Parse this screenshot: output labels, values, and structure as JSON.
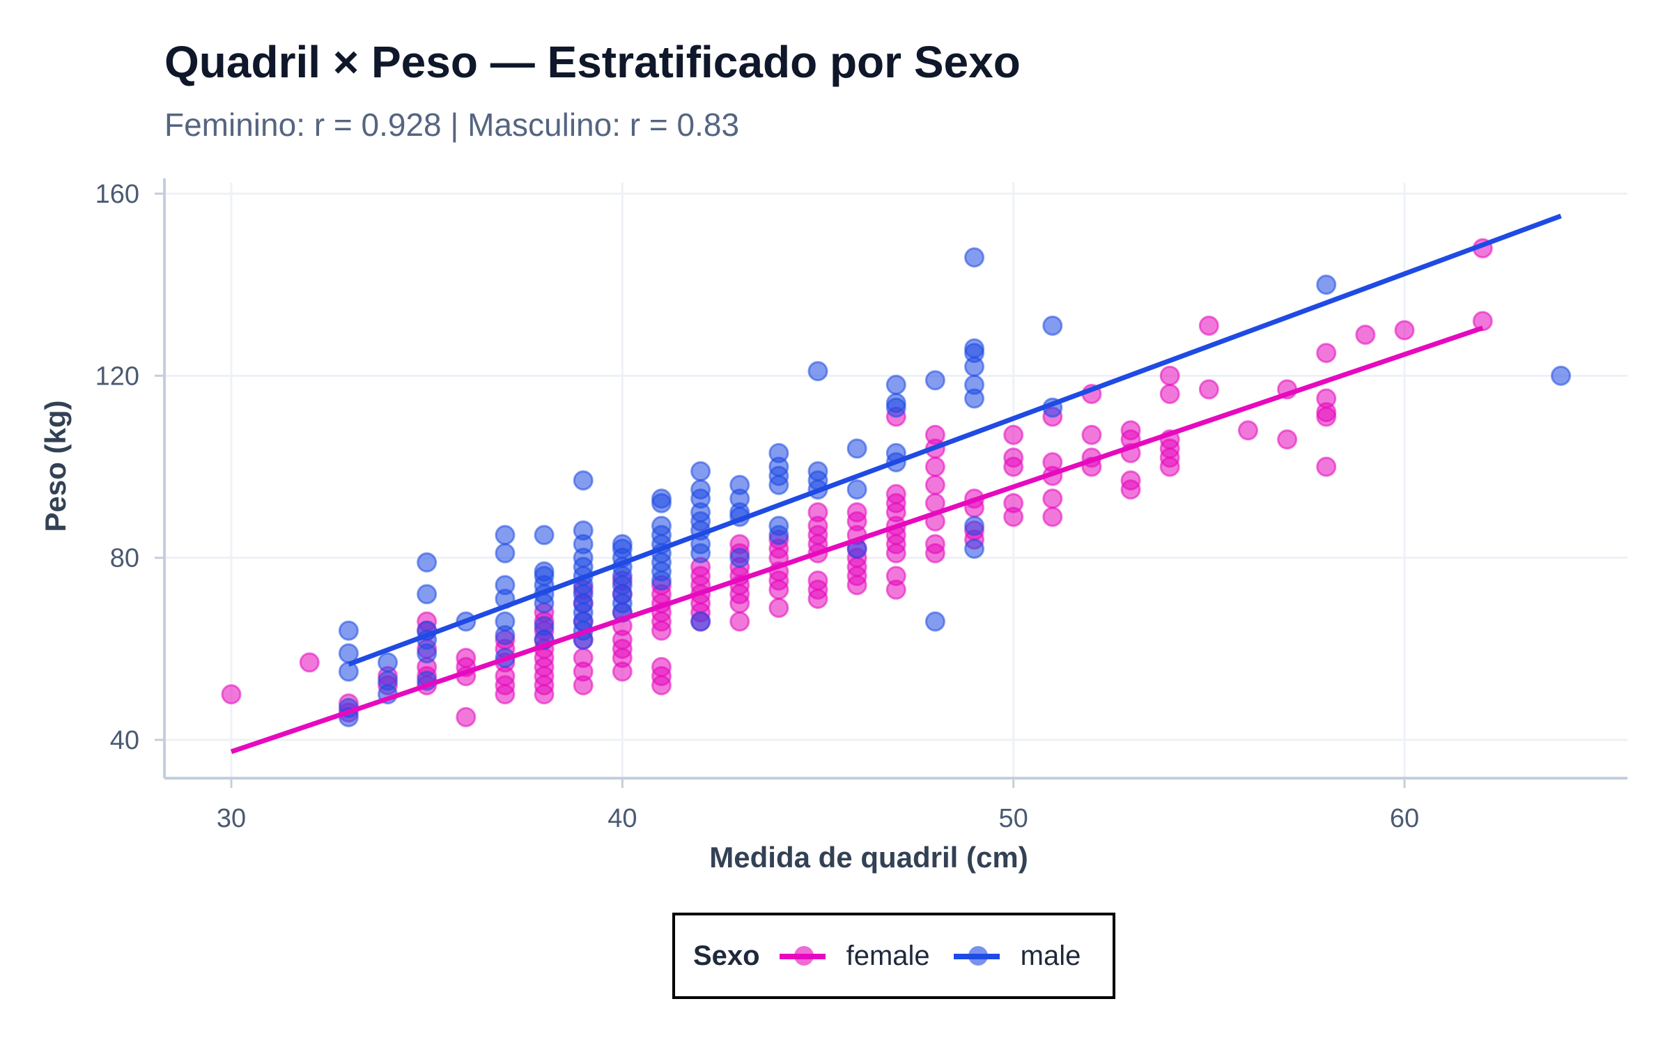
{
  "title": "Quadril × Peso — Estratificado por Sexo",
  "subtitle": "Feminino: r = 0.928 | Masculino: r = 0.83",
  "legend": {
    "title": "Sexo",
    "items": [
      {
        "label": "female",
        "color": "#e60abe"
      },
      {
        "label": "male",
        "color": "#1f4ae3"
      }
    ]
  },
  "chart_data": {
    "type": "scatter",
    "title": "Quadril × Peso — Estratificado por Sexo",
    "subtitle": "Feminino: r = 0.928 | Masculino: r = 0.83",
    "xlabel": "Medida de quadril (cm)",
    "ylabel": "Peso (kg)",
    "xlim": [
      28.3,
      65.7
    ],
    "ylim": [
      32,
      161
    ],
    "xticks": [
      30,
      40,
      50,
      60
    ],
    "yticks": [
      40,
      80,
      120,
      160
    ],
    "grid": true,
    "legend_position": "bottom",
    "series": [
      {
        "name": "female",
        "color": "#e60abe",
        "points": [
          [
            30,
            50
          ],
          [
            32,
            57
          ],
          [
            33,
            46
          ],
          [
            33,
            48
          ],
          [
            34,
            54
          ],
          [
            34,
            52
          ],
          [
            35,
            66
          ],
          [
            35,
            64
          ],
          [
            35,
            60
          ],
          [
            35,
            56
          ],
          [
            35,
            52
          ],
          [
            35,
            54
          ],
          [
            36,
            45
          ],
          [
            36,
            58
          ],
          [
            36,
            54
          ],
          [
            36,
            56
          ],
          [
            37,
            62
          ],
          [
            37,
            60
          ],
          [
            37,
            57
          ],
          [
            37,
            54
          ],
          [
            37,
            52
          ],
          [
            37,
            50
          ],
          [
            38,
            68
          ],
          [
            38,
            66
          ],
          [
            38,
            64
          ],
          [
            38,
            62
          ],
          [
            38,
            60
          ],
          [
            38,
            58
          ],
          [
            38,
            56
          ],
          [
            38,
            54
          ],
          [
            38,
            52
          ],
          [
            38,
            50
          ],
          [
            39,
            73
          ],
          [
            39,
            70
          ],
          [
            39,
            66
          ],
          [
            39,
            62
          ],
          [
            39,
            58
          ],
          [
            39,
            55
          ],
          [
            39,
            52
          ],
          [
            40,
            75
          ],
          [
            40,
            72
          ],
          [
            40,
            68
          ],
          [
            40,
            65
          ],
          [
            40,
            62
          ],
          [
            40,
            60
          ],
          [
            40,
            58
          ],
          [
            40,
            55
          ],
          [
            41,
            74
          ],
          [
            41,
            72
          ],
          [
            41,
            70
          ],
          [
            41,
            68
          ],
          [
            41,
            66
          ],
          [
            41,
            64
          ],
          [
            41,
            56
          ],
          [
            41,
            54
          ],
          [
            41,
            52
          ],
          [
            42,
            78
          ],
          [
            42,
            76
          ],
          [
            42,
            74
          ],
          [
            42,
            72
          ],
          [
            42,
            70
          ],
          [
            42,
            68
          ],
          [
            42,
            66
          ],
          [
            43,
            83
          ],
          [
            43,
            81
          ],
          [
            43,
            78
          ],
          [
            43,
            76
          ],
          [
            43,
            74
          ],
          [
            43,
            72
          ],
          [
            43,
            70
          ],
          [
            43,
            66
          ],
          [
            44,
            84
          ],
          [
            44,
            82
          ],
          [
            44,
            80
          ],
          [
            44,
            77
          ],
          [
            44,
            75
          ],
          [
            44,
            73
          ],
          [
            44,
            69
          ],
          [
            45,
            90
          ],
          [
            45,
            87
          ],
          [
            45,
            85
          ],
          [
            45,
            83
          ],
          [
            45,
            81
          ],
          [
            45,
            75
          ],
          [
            45,
            73
          ],
          [
            45,
            71
          ],
          [
            46,
            90
          ],
          [
            46,
            88
          ],
          [
            46,
            85
          ],
          [
            46,
            82
          ],
          [
            46,
            80
          ],
          [
            46,
            78
          ],
          [
            46,
            76
          ],
          [
            46,
            74
          ],
          [
            47,
            111
          ],
          [
            47,
            94
          ],
          [
            47,
            92
          ],
          [
            47,
            90
          ],
          [
            47,
            87
          ],
          [
            47,
            85
          ],
          [
            47,
            83
          ],
          [
            47,
            81
          ],
          [
            47,
            76
          ],
          [
            47,
            73
          ],
          [
            48,
            107
          ],
          [
            48,
            104
          ],
          [
            48,
            100
          ],
          [
            48,
            96
          ],
          [
            48,
            92
          ],
          [
            48,
            88
          ],
          [
            48,
            83
          ],
          [
            48,
            81
          ],
          [
            49,
            93
          ],
          [
            49,
            91
          ],
          [
            49,
            86
          ],
          [
            49,
            84
          ],
          [
            50,
            107
          ],
          [
            50,
            102
          ],
          [
            50,
            100
          ],
          [
            50,
            92
          ],
          [
            50,
            89
          ],
          [
            51,
            111
          ],
          [
            51,
            101
          ],
          [
            51,
            98
          ],
          [
            51,
            93
          ],
          [
            51,
            89
          ],
          [
            52,
            116
          ],
          [
            52,
            107
          ],
          [
            52,
            102
          ],
          [
            52,
            100
          ],
          [
            53,
            108
          ],
          [
            53,
            106
          ],
          [
            53,
            103
          ],
          [
            53,
            97
          ],
          [
            53,
            95
          ],
          [
            54,
            120
          ],
          [
            54,
            116
          ],
          [
            54,
            106
          ],
          [
            54,
            104
          ],
          [
            54,
            102
          ],
          [
            54,
            100
          ],
          [
            55,
            131
          ],
          [
            55,
            117
          ],
          [
            56,
            108
          ],
          [
            57,
            117
          ],
          [
            57,
            106
          ],
          [
            58,
            125
          ],
          [
            58,
            115
          ],
          [
            58,
            112
          ],
          [
            58,
            111
          ],
          [
            58,
            100
          ],
          [
            59,
            129
          ],
          [
            60,
            130
          ],
          [
            62,
            148
          ],
          [
            62,
            132
          ]
        ],
        "fit": {
          "x": [
            30,
            62
          ],
          "y": [
            37.4,
            130.5
          ]
        },
        "r": 0.928
      },
      {
        "name": "male",
        "color": "#1f4ae3",
        "points": [
          [
            33,
            64
          ],
          [
            33,
            59
          ],
          [
            33,
            55
          ],
          [
            33,
            47
          ],
          [
            33,
            45
          ],
          [
            34,
            57
          ],
          [
            34,
            53
          ],
          [
            34,
            50
          ],
          [
            35,
            79
          ],
          [
            35,
            72
          ],
          [
            35,
            64
          ],
          [
            35,
            62
          ],
          [
            35,
            59
          ],
          [
            35,
            53
          ],
          [
            36,
            66
          ],
          [
            37,
            85
          ],
          [
            37,
            81
          ],
          [
            37,
            74
          ],
          [
            37,
            71
          ],
          [
            37,
            66
          ],
          [
            37,
            63
          ],
          [
            37,
            58
          ],
          [
            38,
            85
          ],
          [
            38,
            77
          ],
          [
            38,
            76
          ],
          [
            38,
            74
          ],
          [
            38,
            72
          ],
          [
            38,
            70
          ],
          [
            38,
            65
          ],
          [
            38,
            62
          ],
          [
            39,
            97
          ],
          [
            39,
            86
          ],
          [
            39,
            83
          ],
          [
            39,
            80
          ],
          [
            39,
            78
          ],
          [
            39,
            76
          ],
          [
            39,
            74
          ],
          [
            39,
            72
          ],
          [
            39,
            70
          ],
          [
            39,
            68
          ],
          [
            39,
            66
          ],
          [
            39,
            64
          ],
          [
            39,
            62
          ],
          [
            40,
            83
          ],
          [
            40,
            82
          ],
          [
            40,
            80
          ],
          [
            40,
            78
          ],
          [
            40,
            76
          ],
          [
            40,
            74
          ],
          [
            40,
            72
          ],
          [
            40,
            70
          ],
          [
            40,
            68
          ],
          [
            41,
            93
          ],
          [
            41,
            92
          ],
          [
            41,
            87
          ],
          [
            41,
            85
          ],
          [
            41,
            83
          ],
          [
            41,
            81
          ],
          [
            41,
            79
          ],
          [
            41,
            77
          ],
          [
            41,
            75
          ],
          [
            42,
            99
          ],
          [
            42,
            95
          ],
          [
            42,
            93
          ],
          [
            42,
            90
          ],
          [
            42,
            88
          ],
          [
            42,
            86
          ],
          [
            42,
            83
          ],
          [
            42,
            81
          ],
          [
            42,
            66
          ],
          [
            43,
            96
          ],
          [
            43,
            93
          ],
          [
            43,
            90
          ],
          [
            43,
            89
          ],
          [
            43,
            80
          ],
          [
            44,
            103
          ],
          [
            44,
            100
          ],
          [
            44,
            98
          ],
          [
            44,
            96
          ],
          [
            44,
            87
          ],
          [
            44,
            85
          ],
          [
            45,
            121
          ],
          [
            45,
            99
          ],
          [
            45,
            97
          ],
          [
            45,
            95
          ],
          [
            46,
            104
          ],
          [
            46,
            95
          ],
          [
            46,
            82
          ],
          [
            47,
            118
          ],
          [
            47,
            114
          ],
          [
            47,
            113
          ],
          [
            47,
            103
          ],
          [
            47,
            101
          ],
          [
            48,
            119
          ],
          [
            48,
            66
          ],
          [
            49,
            146
          ],
          [
            49,
            126
          ],
          [
            49,
            125
          ],
          [
            49,
            122
          ],
          [
            49,
            118
          ],
          [
            49,
            115
          ],
          [
            49,
            87
          ],
          [
            49,
            82
          ],
          [
            51,
            131
          ],
          [
            51,
            113
          ],
          [
            58,
            140
          ],
          [
            64,
            120
          ]
        ],
        "fit": {
          "x": [
            33,
            64
          ],
          "y": [
            56.6,
            155.1
          ]
        },
        "r": 0.83
      }
    ]
  }
}
